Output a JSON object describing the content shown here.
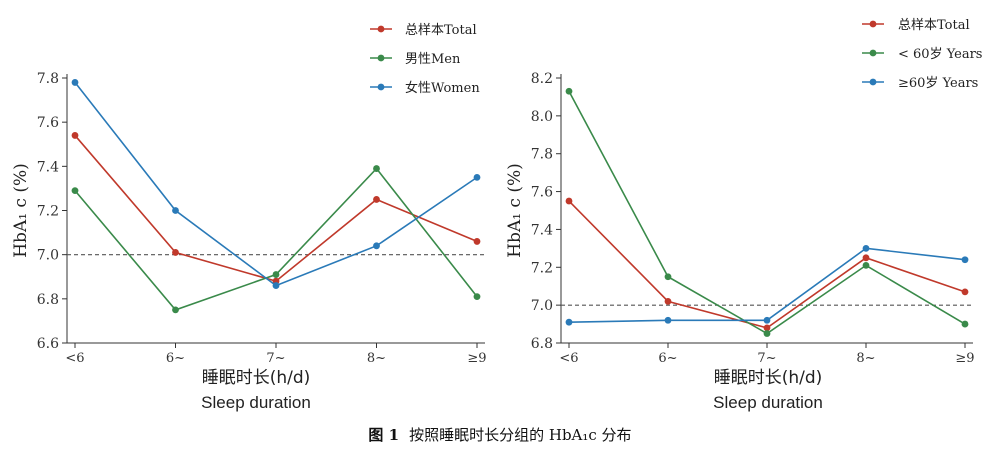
{
  "caption": {
    "prefix": "图 1",
    "text": "按照睡眠时长分组的 HbA₁c 分布"
  },
  "chart_data": [
    {
      "type": "line",
      "categories": [
        "<6",
        "6~",
        "7~",
        "8~",
        "≥9"
      ],
      "xlabel": "睡眠时长(h/d)",
      "xlabel2": "Sleep duration",
      "ylabel": "HbA₁ c (%)",
      "ylim": [
        6.6,
        7.8
      ],
      "yticks": [
        "6.6",
        "6.8",
        "7.0",
        "7.2",
        "7.4",
        "7.6",
        "7.8"
      ],
      "reference_line": 7.0,
      "legend_position": "top-right",
      "series": [
        {
          "name": "总样本Total",
          "color": "#c0392b",
          "values": [
            7.54,
            7.01,
            6.88,
            7.25,
            7.06
          ]
        },
        {
          "name": "男性Men",
          "color": "#3a8a4a",
          "values": [
            7.29,
            6.75,
            6.91,
            7.39,
            6.81
          ]
        },
        {
          "name": "女性Women",
          "color": "#2a7ab8",
          "values": [
            7.78,
            7.2,
            6.86,
            7.04,
            7.35
          ]
        }
      ]
    },
    {
      "type": "line",
      "categories": [
        "<6",
        "6~",
        "7~",
        "8~",
        "≥9"
      ],
      "xlabel": "睡眠时长(h/d)",
      "xlabel2": "Sleep duration",
      "ylabel": "HbA₁ c (%)",
      "ylim": [
        6.8,
        8.2
      ],
      "yticks": [
        "6.8",
        "7.0",
        "7.2",
        "7.4",
        "7.6",
        "7.8",
        "8.0",
        "8.2"
      ],
      "reference_line": 7.0,
      "legend_position": "top-right",
      "series": [
        {
          "name": "总样本Total",
          "color": "#c0392b",
          "values": [
            7.55,
            7.02,
            6.88,
            7.25,
            7.07
          ]
        },
        {
          "name": "< 60岁 Years",
          "color": "#3a8a4a",
          "values": [
            8.13,
            7.15,
            6.85,
            7.21,
            6.9
          ]
        },
        {
          "name": "≥60岁 Years",
          "color": "#2a7ab8",
          "values": [
            6.91,
            6.92,
            6.92,
            7.3,
            7.24
          ]
        }
      ]
    }
  ]
}
